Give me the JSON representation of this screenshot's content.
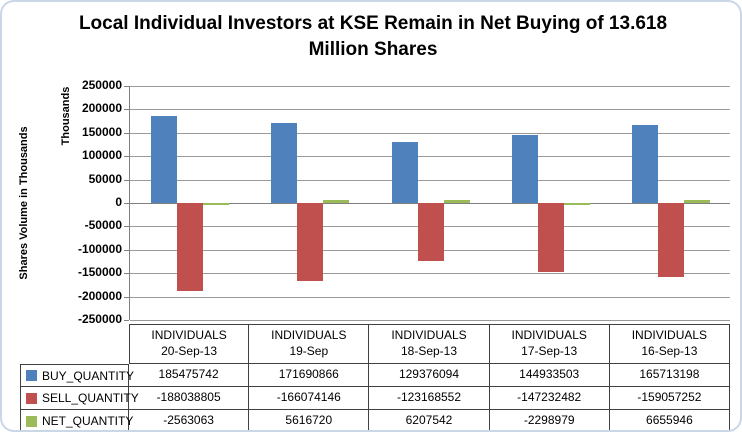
{
  "chart_data": {
    "type": "bar",
    "title": "Local Individual Investors at KSE Remain in Net Buying of 13.618 Million Shares",
    "ylabel": "Shares Volume in Thousands",
    "units_label": "Thousands",
    "ylim": [
      -250000,
      250000
    ],
    "y_ticks": [
      250000,
      200000,
      150000,
      100000,
      50000,
      0,
      -50000,
      -100000,
      -150000,
      -200000,
      -250000
    ],
    "value_divisor": 1000,
    "grid": true,
    "legend_position": "table-row-labels",
    "categories": [
      "INDIVIDUALS",
      "INDIVIDUALS",
      "INDIVIDUALS",
      "INDIVIDUALS",
      "INDIVIDUALS"
    ],
    "category_dates": [
      "20-Sep-13",
      "19-Sep",
      "18-Sep-13",
      "17-Sep-13",
      "16-Sep-13"
    ],
    "series": [
      {
        "name": "BUY_QUANTITY",
        "color": "#4F81BD",
        "values": [
          185475742,
          171690866,
          129376094,
          144933503,
          165713198
        ]
      },
      {
        "name": "SELL_QUANTITY",
        "color": "#C0504D",
        "values": [
          -188038805,
          -166074146,
          -123168552,
          -147232482,
          -159057252
        ]
      },
      {
        "name": "NET_QUANTITY",
        "color": "#9BBB59",
        "values": [
          -2563063,
          5616720,
          6207542,
          -2298979,
          6655946
        ]
      }
    ]
  },
  "colors": {
    "buy": "#4F81BD",
    "sell": "#C0504D",
    "net": "#9BBB59",
    "gridline": "#9A9A9A",
    "axis_line": "#808080",
    "table_border": "#404040",
    "frame_border": "#C9D7E6"
  }
}
